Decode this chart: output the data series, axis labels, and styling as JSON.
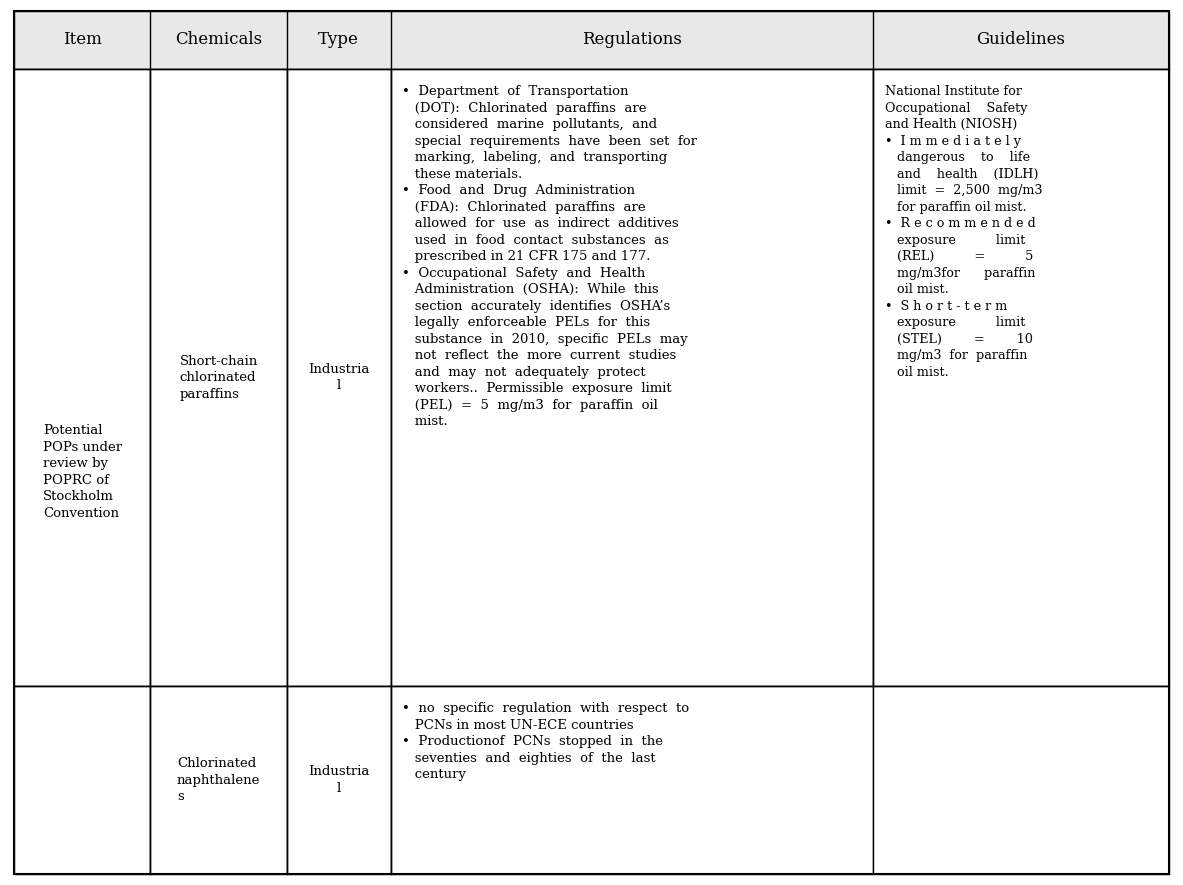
{
  "background_color": "#ffffff",
  "header_bg": "#e8e8e8",
  "border_color": "#000000",
  "fig_width": 11.83,
  "fig_height": 8.85,
  "columns": [
    "Item",
    "Chemicals",
    "Type",
    "Regulations",
    "Guidelines"
  ],
  "header_fontsize": 12,
  "cell_fontsize": 9.5,
  "item_text": "Potential\nPOPs under\nreview by\nPOPRC of\nStockholm\nConvention",
  "chem1_text": "Short-chain\nchlorinated\nparaffins",
  "type1_text": "Industria\nl",
  "reg1_text": "•  Department  of  Transportation\n   (DOT):  Chlorinated  paraffins  are\n   considered  marine  pollutants,  and\n   special  requirements  have  been  set  for\n   marking,  labeling,  and  transporting\n   these materials.\n•  Food  and  Drug  Administration\n   (FDA):  Chlorinated  paraffins  are\n   allowed  for  use  as  indirect  additives\n   used  in  food  contact  substances  as\n   prescribed in 21 CFR 175 and 177.\n•  Occupational  Safety  and  Health\n   Administration  (OSHA):  While  this\n   section  accurately  identifies  OSHA’s\n   legally  enforceable  PELs  for  this\n   substance  in  2010,  specific  PELs  may\n   not  reflect  the  more  current  studies\n   and  may  not  adequately  protect\n   workers..  Permissible  exposure  limit\n   (PEL)  =  5  mg/m3  for  paraffin  oil\n   mist.",
  "guide1_text": "National Institute for\nOccupational    Safety\nand Health (NIOSH)\n•  I m m e d i a t e l y\n   dangerous    to    life\n   and    health    (IDLH)\n   limit  =  2,500  mg/m3\n   for paraffin oil mist.\n•  R e c o m m e n d e d\n   exposure          limit\n   (REL)          =          5\n   mg/m3for      paraffin\n   oil mist.\n•  S h o r t - t e r m\n   exposure          limit\n   (STEL)        =        10\n   mg/m3  for  paraffin\n   oil mist.",
  "chem2_text": "Chlorinated\nnaphthalene\ns",
  "type2_text": "Industria\nl",
  "reg2_text": "•  no  specific  regulation  with  respect  to\n   PCNs in most UN-ECE countries\n•  Productionof  PCNs  stopped  in  the\n   seventies  and  eighties  of  the  last\n   century"
}
